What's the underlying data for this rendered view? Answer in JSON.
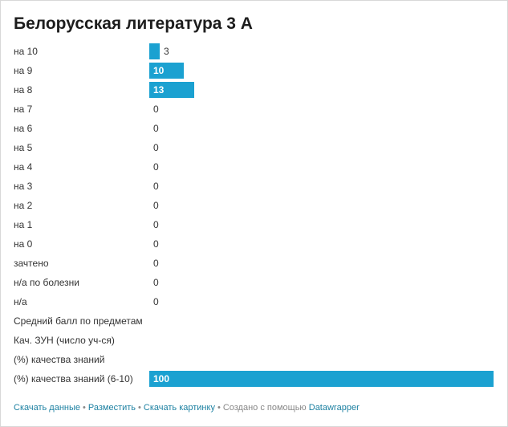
{
  "title": "Белорусская литература 3 А",
  "colors": {
    "bar": "#1ba1d1",
    "link": "#1d81a2",
    "text": "#333333"
  },
  "chart_data": {
    "type": "bar",
    "orientation": "horizontal",
    "title": "Белорусская литература 3 А",
    "xlim": [
      0,
      100
    ],
    "categories": [
      "на 10",
      "на 9",
      "на 8",
      "на 7",
      "на 6",
      "на 5",
      "на 4",
      "на 3",
      "на 2",
      "на 1",
      "на 0",
      "зачтено",
      "н/а по болезни",
      "н/а",
      "Средний балл по предметам",
      "Кач. ЗУН (число уч-ся)",
      "(%) качества знаний",
      "(%) качества знаний (6-10)"
    ],
    "values": [
      3,
      10,
      13,
      0,
      0,
      0,
      0,
      0,
      0,
      0,
      0,
      0,
      0,
      0,
      null,
      null,
      null,
      100
    ],
    "value_labels": [
      "3",
      "10",
      "13",
      "0",
      "0",
      "0",
      "0",
      "0",
      "0",
      "0",
      "0",
      "0",
      "0",
      "0",
      "",
      "",
      "",
      "100"
    ]
  },
  "footer": {
    "download_data": "Скачать данные",
    "embed": "Разместить",
    "download_image": "Скачать картинку",
    "created_with": "Создано с помощью",
    "datawrapper": "Datawrapper",
    "separator": "•"
  }
}
